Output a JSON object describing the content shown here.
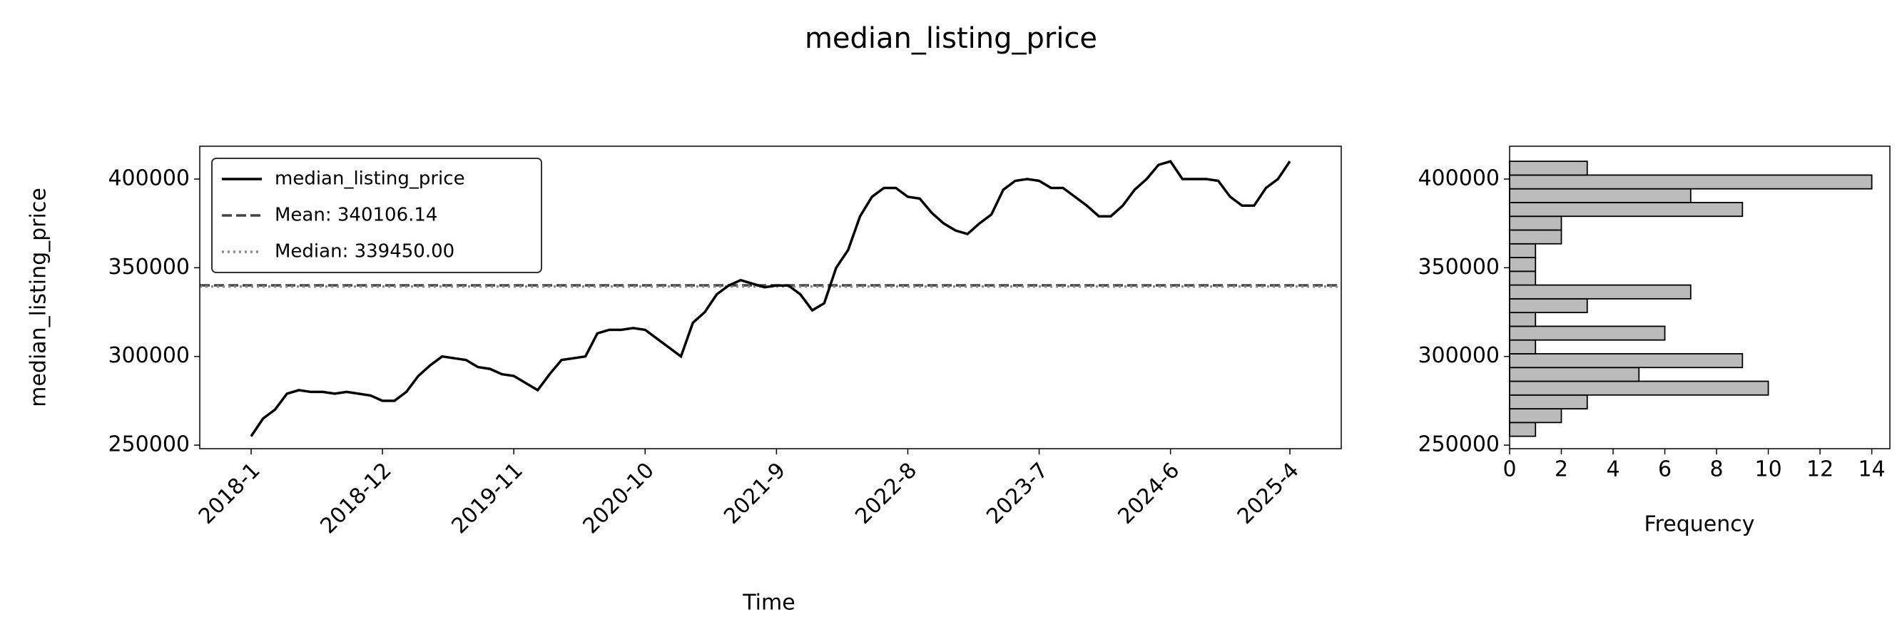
{
  "chart_data": [
    {
      "type": "line",
      "title": "median_listing_price",
      "xlabel": "Time",
      "ylabel": "median_listing_price",
      "categories": [
        "2018-1",
        null,
        null,
        null,
        null,
        null,
        null,
        null,
        null,
        null,
        null,
        "2018-12",
        null,
        null,
        null,
        null,
        null,
        null,
        null,
        null,
        null,
        null,
        "2019-11",
        null,
        null,
        null,
        null,
        null,
        null,
        null,
        null,
        null,
        null,
        "2020-10",
        null,
        null,
        null,
        null,
        null,
        null,
        null,
        null,
        null,
        null,
        "2021-9",
        null,
        null,
        null,
        null,
        null,
        null,
        null,
        null,
        null,
        null,
        "2022-8",
        null,
        null,
        null,
        null,
        null,
        null,
        null,
        null,
        null,
        null,
        "2023-7",
        null,
        null,
        null,
        null,
        null,
        null,
        null,
        null,
        null,
        null,
        "2024-6",
        null,
        null,
        null,
        null,
        null,
        null,
        null,
        null,
        null,
        "2025-4"
      ],
      "series": [
        {
          "name": "median_listing_price",
          "color": "#000000",
          "values": [
            255000,
            265000,
            270000,
            279000,
            281000,
            280000,
            280000,
            279000,
            280000,
            279000,
            278000,
            275000,
            275000,
            280000,
            289000,
            295000,
            300000,
            299000,
            298000,
            294000,
            293000,
            290000,
            289000,
            285000,
            281000,
            290000,
            298000,
            299000,
            300000,
            313000,
            315000,
            315000,
            316000,
            315000,
            310000,
            305000,
            300000,
            319000,
            325000,
            335000,
            340000,
            343000,
            341000,
            339000,
            340000,
            340000,
            335000,
            326000,
            330000,
            350000,
            360000,
            379000,
            390000,
            395000,
            395000,
            390000,
            389000,
            381000,
            375000,
            371000,
            369000,
            375000,
            380000,
            394000,
            399000,
            400000,
            399000,
            395000,
            395000,
            390000,
            385000,
            379000,
            379000,
            385000,
            394000,
            400000,
            408000,
            410000,
            400000,
            400000,
            400000,
            399000,
            390000,
            385000,
            385000,
            395000,
            400000,
            410000
          ]
        }
      ],
      "hlines": [
        {
          "name": "Mean: 340106.14",
          "value": 340106.14,
          "color": "#444444",
          "dash": "dashed"
        },
        {
          "name": "Median: 339450.00",
          "value": 339450.0,
          "color": "#888888",
          "dash": "dotted"
        }
      ],
      "ylim": [
        248000,
        418500
      ],
      "yticks": [
        250000,
        300000,
        350000,
        400000
      ],
      "legend": "upper left"
    },
    {
      "type": "histogram",
      "orientation": "horizontal",
      "xlabel": "Frequency",
      "color": "#bbbbbb",
      "bins": [
        255000,
        262750,
        270500,
        278250,
        286000,
        293750,
        301500,
        309250,
        317000,
        324750,
        332500,
        340250,
        348000,
        355750,
        363500,
        371250,
        379000,
        386750,
        394500,
        402250,
        410000
      ],
      "counts": [
        1,
        2,
        3,
        10,
        5,
        9,
        1,
        6,
        1,
        3,
        7,
        1,
        1,
        1,
        2,
        2,
        9,
        7,
        14,
        3
      ],
      "xlim": [
        0,
        14.7
      ],
      "xticks": [
        0,
        2,
        4,
        6,
        8,
        10,
        12,
        14
      ],
      "ylim": [
        248000,
        418500
      ],
      "yticks": [
        250000,
        300000,
        350000,
        400000
      ]
    }
  ]
}
